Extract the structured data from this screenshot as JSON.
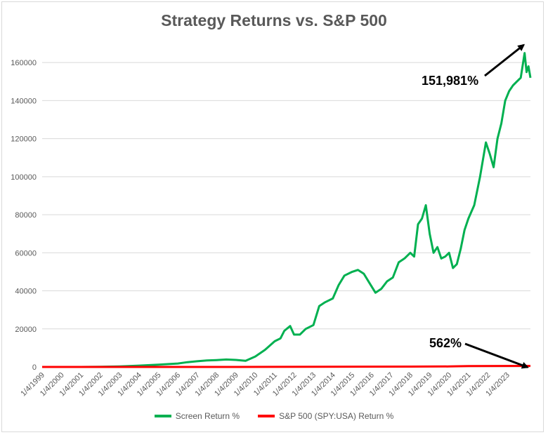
{
  "chart_data": {
    "type": "line",
    "title": "Strategy Returns vs. S&P 500",
    "xlabel": "",
    "ylabel": "",
    "ylim": [
      0,
      170000
    ],
    "yticks": [
      0,
      20000,
      40000,
      60000,
      80000,
      100000,
      120000,
      140000,
      160000
    ],
    "xticks": [
      "1/4/1999",
      "1/4/2000",
      "1/4/2001",
      "1/4/2002",
      "1/4/2003",
      "1/4/2004",
      "1/4/2005",
      "1/4/2006",
      "1/4/2007",
      "1/4/2008",
      "1/4/2009",
      "1/4/2010",
      "1/4/2011",
      "1/4/2012",
      "1/4/2013",
      "1/4/2014",
      "1/4/2015",
      "1/4/2016",
      "1/4/2017",
      "1/4/2018",
      "1/4/2019",
      "1/4/2020",
      "1/4/2021",
      "1/4/2022",
      "1/4/2023"
    ],
    "grid": true,
    "legend_position": "bottom",
    "series": [
      {
        "name": "Screen Return %",
        "color": "#00b050",
        "x": [
          1999.0,
          2001.0,
          2002.0,
          2003.0,
          2004.0,
          2005.0,
          2006.0,
          2006.5,
          2007.0,
          2007.5,
          2008.0,
          2008.5,
          2009.0,
          2009.5,
          2010.0,
          2010.5,
          2011.0,
          2011.3,
          2011.5,
          2011.8,
          2012.0,
          2012.3,
          2012.6,
          2013.0,
          2013.3,
          2013.6,
          2014.0,
          2014.3,
          2014.6,
          2015.0,
          2015.3,
          2015.6,
          2015.9,
          2016.2,
          2016.5,
          2016.8,
          2017.1,
          2017.4,
          2017.7,
          2018.0,
          2018.2,
          2018.4,
          2018.6,
          2018.8,
          2019.0,
          2019.2,
          2019.4,
          2019.6,
          2019.8,
          2020.0,
          2020.2,
          2020.4,
          2020.6,
          2020.8,
          2021.0,
          2021.3,
          2021.6,
          2021.9,
          2022.1,
          2022.3,
          2022.5,
          2022.7,
          2022.9,
          2023.1,
          2023.3,
          2023.5,
          2023.7,
          2023.9,
          2024.0,
          2024.1,
          2024.2
        ],
        "values": [
          0,
          0,
          100,
          300,
          700,
          1200,
          1800,
          2500,
          3000,
          3400,
          3600,
          3900,
          3700,
          3200,
          5500,
          9000,
          13500,
          15000,
          19000,
          21500,
          17000,
          17000,
          20000,
          22000,
          32000,
          34000,
          36000,
          43000,
          48000,
          50000,
          51000,
          49000,
          44000,
          39000,
          41000,
          45000,
          47000,
          55000,
          57000,
          60000,
          58000,
          75000,
          78000,
          85000,
          70000,
          60000,
          63000,
          57000,
          58000,
          60000,
          52000,
          54000,
          62000,
          72000,
          78000,
          85000,
          100000,
          118000,
          112000,
          105000,
          120000,
          128000,
          140000,
          145000,
          148000,
          150000,
          152000,
          165000,
          155000,
          158000,
          151981
        ]
      },
      {
        "name": "S&P 500 (SPY:USA) Return %",
        "color": "#ff0000",
        "x": [
          1999.0,
          2003.0,
          2009.0,
          2013.0,
          2018.0,
          2020.0,
          2021.0,
          2024.2
        ],
        "values": [
          0,
          0,
          0,
          100,
          200,
          250,
          450,
          562
        ]
      }
    ],
    "annotations": [
      {
        "text": "151,981%",
        "target_x": 2024.0,
        "target_y": 170000
      },
      {
        "text": "562%",
        "target_x": 2024.2,
        "target_y": 562
      }
    ]
  }
}
